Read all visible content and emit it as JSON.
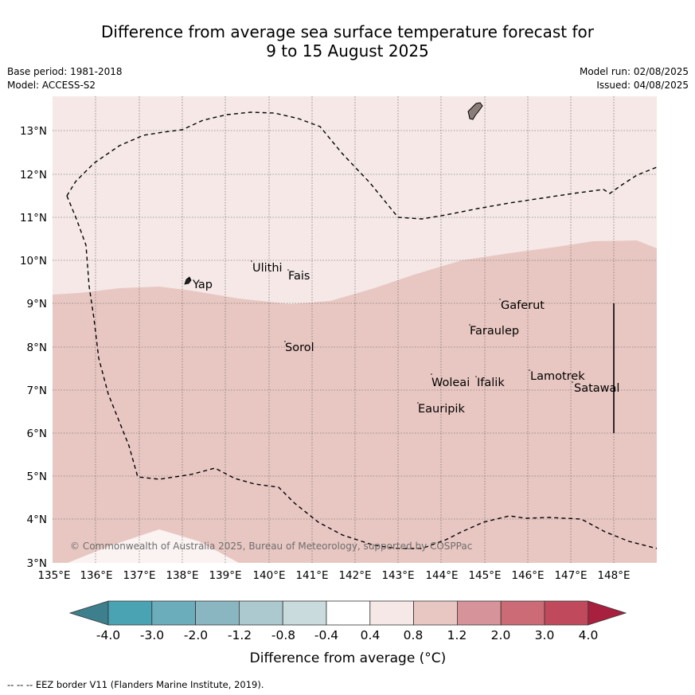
{
  "title": {
    "line1": "Difference from average sea surface temperature forecast for",
    "line2": "9 to 15 August 2025"
  },
  "meta": {
    "base_period": "Base period: 1981-2018",
    "model": "Model: ACCESS-S2",
    "model_run": "Model run: 02/08/2025",
    "issued": "Issued: 04/08/2025"
  },
  "map": {
    "lon_labels": [
      "135°E",
      "136°E",
      "137°E",
      "138°E",
      "139°E",
      "140°E",
      "141°E",
      "142°E",
      "143°E",
      "144°E",
      "145°E",
      "146°E",
      "147°E",
      "148°E"
    ],
    "lat_labels": [
      "13°N",
      "12°N",
      "11°N",
      "10°N",
      "9°N",
      "8°N",
      "7°N",
      "6°N",
      "5°N",
      "4°N",
      "3°N"
    ],
    "places": [
      "Yap",
      "Ulithi",
      "Fais",
      "Gaferut",
      "Faraulep",
      "Sorol",
      "Woleai",
      "Ifalik",
      "Lamotrek",
      "Satawal",
      "Eauripik"
    ],
    "copyright": "© Commonwealth of Australia 2025, Bureau of Meteorology, supported by COSPPac",
    "colors": {
      "band_04_08": "#f5e8e6",
      "band_08_12": "#e8c7c2",
      "band_near_zero": "#ffffff",
      "land": "#8a7d7a",
      "grid": "#555555",
      "eez": "#000000"
    }
  },
  "colorbar": {
    "tick_labels": [
      "-4.0",
      "-3.0",
      "-2.0",
      "-1.2",
      "-0.8",
      "-0.4",
      "0.4",
      "0.8",
      "1.2",
      "2.0",
      "3.0",
      "4.0"
    ],
    "colors": [
      "#3d7f8c",
      "#49a3b3",
      "#6badbb",
      "#8ab6c1",
      "#abc9ce",
      "#c9dbdc",
      "#ffffff",
      "#f5e8e6",
      "#e8c7c2",
      "#d6939a",
      "#cc6b75",
      "#c04a5b",
      "#a9203e"
    ],
    "title": "Difference from average (°C)"
  },
  "footnote": "--  --  -- EEZ border V11 (Flanders Marine Institute, 2019)."
}
